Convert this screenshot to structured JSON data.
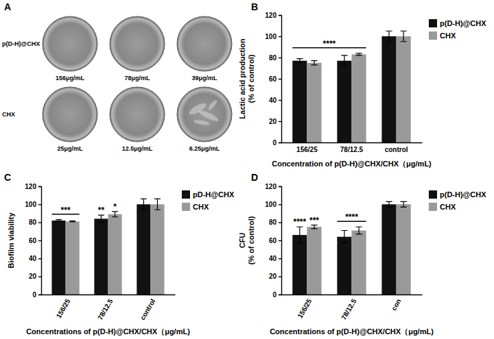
{
  "panel_a": {
    "title": "A",
    "rows": [
      {
        "name": "p(D-H)@CHX",
        "labels": [
          "156μg/mL",
          "78μg/mL",
          "39μg/mL"
        ]
      },
      {
        "name": "CHX",
        "labels": [
          "25μg/mL",
          "12.5μg/mL",
          "6.25μg/mL"
        ]
      }
    ]
  },
  "chart_data": [
    {
      "type": "bar",
      "title": "B",
      "xlabel": "Concentration of p(D-H)@CHX/CHX（μg/mL)",
      "ylabel": "Lactic acid production\n(% of control)",
      "categories": [
        "156/25",
        "78/12.5",
        "control"
      ],
      "series": [
        {
          "name": "p(D-H)@CHX",
          "color": "#111111",
          "values": [
            77,
            77,
            100
          ],
          "errors": [
            2,
            5,
            5
          ]
        },
        {
          "name": "CHX",
          "color": "#9a9a9a",
          "values": [
            75,
            83,
            100
          ],
          "errors": [
            2,
            1,
            5
          ]
        }
      ],
      "ylim": [
        0,
        120
      ],
      "yticks": [
        0,
        20,
        40,
        60,
        80,
        100,
        120
      ],
      "legend": "right",
      "annotations": [
        {
          "text": "****",
          "span": [
            "156/25",
            "78/12.5"
          ]
        }
      ]
    },
    {
      "type": "bar",
      "title": "C",
      "xlabel": "Concentrations of p(D-H)@CHX/CHX（μg/mL)",
      "ylabel": "Biofilm viability",
      "categories": [
        "156/25",
        "78/12.5",
        "control"
      ],
      "series": [
        {
          "name": "pD-H@CHX",
          "color": "#111111",
          "values": [
            82,
            84,
            100
          ],
          "errors": [
            1,
            4,
            6
          ]
        },
        {
          "name": "CHX",
          "color": "#9a9a9a",
          "values": [
            81,
            89,
            100
          ],
          "errors": [
            0.5,
            3,
            6
          ]
        }
      ],
      "ylim": [
        0,
        120
      ],
      "yticks": [
        0,
        20,
        40,
        60,
        80,
        100,
        120
      ],
      "legend": "right",
      "annotations": [
        {
          "text": "***",
          "span": [
            "156/25"
          ]
        },
        {
          "text": "**",
          "category": "78/12.5",
          "series": "pD-H@CHX"
        },
        {
          "text": "*",
          "category": "78/12.5",
          "series": "CHX"
        }
      ]
    },
    {
      "type": "bar",
      "title": "D",
      "xlabel": "Concentrations of p(D-H)@CHX/CHX（μg/mL)",
      "ylabel": "CFU\n(% of control)",
      "categories": [
        "156/25",
        "78/12.5",
        "con"
      ],
      "series": [
        {
          "name": "p(D-H)@CHX",
          "color": "#111111",
          "values": [
            66,
            64,
            100
          ],
          "errors": [
            9,
            7,
            3
          ]
        },
        {
          "name": "CHX",
          "color": "#9a9a9a",
          "values": [
            75,
            71,
            100
          ],
          "errors": [
            2,
            4,
            3
          ]
        }
      ],
      "ylim": [
        0,
        120
      ],
      "yticks": [
        0,
        20,
        40,
        60,
        80,
        100,
        120
      ],
      "legend": "right",
      "annotations": [
        {
          "text": "****",
          "category": "156/25",
          "series": "p(D-H)@CHX"
        },
        {
          "text": "***",
          "category": "156/25",
          "series": "CHX"
        },
        {
          "text": "****",
          "span": [
            "78/12.5"
          ]
        }
      ]
    }
  ]
}
